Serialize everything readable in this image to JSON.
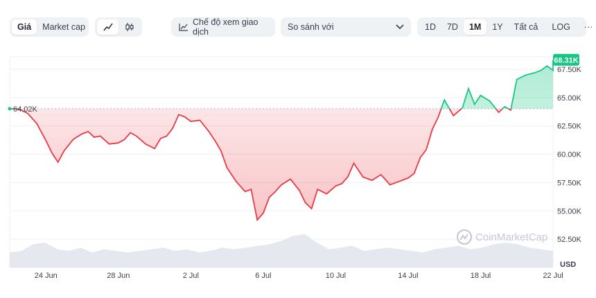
{
  "toolbar": {
    "metric_tabs": [
      {
        "label": "Giá",
        "active": true
      },
      {
        "label": "Market cap",
        "active": false
      }
    ],
    "chart_type_icons": [
      {
        "icon": "line-chart-icon",
        "active": true
      },
      {
        "icon": "candlestick-icon",
        "active": false
      }
    ],
    "view_mode_label": "Chế độ xem giao dịch",
    "compare_placeholder": "So sánh với",
    "ranges": [
      {
        "label": "1D",
        "active": false
      },
      {
        "label": "7D",
        "active": false
      },
      {
        "label": "1M",
        "active": true
      },
      {
        "label": "1Y",
        "active": false
      },
      {
        "label": "Tất cả",
        "active": false
      },
      {
        "label": "LOG",
        "active": false
      }
    ],
    "more_label": "···"
  },
  "watermark": "CoinMarketCap",
  "colors": {
    "up": "#16c784",
    "down": "#ea3943",
    "baseline": "#a6b0c3",
    "grid": "#eef0f4"
  },
  "chart_data": {
    "type": "area",
    "currency": "USD",
    "baseline_value": 64020,
    "baseline_label": "64.02K",
    "current_value": 68310,
    "current_label": "68.31K",
    "ylim": [
      50000,
      68600
    ],
    "yticks": [
      {
        "value": 52500,
        "label": "52.50K"
      },
      {
        "value": 55000,
        "label": "55.00K"
      },
      {
        "value": 57500,
        "label": "57.50K"
      },
      {
        "value": 60000,
        "label": "60.00K"
      },
      {
        "value": 62500,
        "label": "62.50K"
      },
      {
        "value": 65000,
        "label": "65.00K"
      },
      {
        "value": 67500,
        "label": "67.50K"
      }
    ],
    "x_domain": [
      "2024-06-22",
      "2024-07-22"
    ],
    "xticks": [
      {
        "date": "2024-06-24",
        "label": "24 Jun"
      },
      {
        "date": "2024-06-28",
        "label": "28 Jun"
      },
      {
        "date": "2024-07-02",
        "label": "2 Jul"
      },
      {
        "date": "2024-07-06",
        "label": "6 Jul"
      },
      {
        "date": "2024-07-10",
        "label": "10 Jul"
      },
      {
        "date": "2024-07-14",
        "label": "14 Jul"
      },
      {
        "date": "2024-07-18",
        "label": "18 Jul"
      },
      {
        "date": "2024-07-22",
        "label": "22 Jul"
      }
    ],
    "series": [
      {
        "points": [
          [
            "2024-06-22",
            64020
          ],
          [
            "2024-06-22",
            64000
          ],
          [
            "2024-06-23",
            63600
          ],
          [
            "2024-06-23",
            62700
          ],
          [
            "2024-06-24",
            61200
          ],
          [
            "2024-06-24",
            60100
          ],
          [
            "2024-06-24",
            59300
          ],
          [
            "2024-06-25",
            60300
          ],
          [
            "2024-06-25",
            61300
          ],
          [
            "2024-06-26",
            61800
          ],
          [
            "2024-06-26",
            62000
          ],
          [
            "2024-06-26",
            61500
          ],
          [
            "2024-06-27",
            61600
          ],
          [
            "2024-06-27",
            60900
          ],
          [
            "2024-06-28",
            61000
          ],
          [
            "2024-06-28",
            61300
          ],
          [
            "2024-06-28",
            61900
          ],
          [
            "2024-06-29",
            61600
          ],
          [
            "2024-06-29",
            60900
          ],
          [
            "2024-06-30",
            60500
          ],
          [
            "2024-06-30",
            61400
          ],
          [
            "2024-06-30",
            61600
          ],
          [
            "2024-07-01",
            62300
          ],
          [
            "2024-07-01",
            63500
          ],
          [
            "2024-07-01",
            63300
          ],
          [
            "2024-07-02",
            62900
          ],
          [
            "2024-07-02",
            63000
          ],
          [
            "2024-07-03",
            62000
          ],
          [
            "2024-07-03",
            61200
          ],
          [
            "2024-07-03",
            60300
          ],
          [
            "2024-07-04",
            58800
          ],
          [
            "2024-07-04",
            57600
          ],
          [
            "2024-07-05",
            56700
          ],
          [
            "2024-07-05",
            56900
          ],
          [
            "2024-07-05",
            54200
          ],
          [
            "2024-07-06",
            54800
          ],
          [
            "2024-07-06",
            56200
          ],
          [
            "2024-07-06",
            56700
          ],
          [
            "2024-07-07",
            57300
          ],
          [
            "2024-07-07",
            57800
          ],
          [
            "2024-07-08",
            56800
          ],
          [
            "2024-07-08",
            55700
          ],
          [
            "2024-07-08",
            55200
          ],
          [
            "2024-07-09",
            56900
          ],
          [
            "2024-07-09",
            56500
          ],
          [
            "2024-07-10",
            57200
          ],
          [
            "2024-07-10",
            57400
          ],
          [
            "2024-07-10",
            58000
          ],
          [
            "2024-07-11",
            59200
          ],
          [
            "2024-07-11",
            58000
          ],
          [
            "2024-07-12",
            57700
          ],
          [
            "2024-07-12",
            58200
          ],
          [
            "2024-07-13",
            57300
          ],
          [
            "2024-07-13",
            57600
          ],
          [
            "2024-07-14",
            57900
          ],
          [
            "2024-07-14",
            58300
          ],
          [
            "2024-07-14",
            59700
          ],
          [
            "2024-07-15",
            60400
          ],
          [
            "2024-07-15",
            62200
          ],
          [
            "2024-07-15",
            63300
          ],
          [
            "2024-07-16",
            64800
          ],
          [
            "2024-07-16",
            63400
          ],
          [
            "2024-07-17",
            64100
          ],
          [
            "2024-07-17",
            65800
          ],
          [
            "2024-07-17",
            64400
          ],
          [
            "2024-07-18",
            65200
          ],
          [
            "2024-07-18",
            64700
          ],
          [
            "2024-07-19",
            63700
          ],
          [
            "2024-07-19",
            64200
          ],
          [
            "2024-07-19",
            63900
          ],
          [
            "2024-07-20",
            66600
          ],
          [
            "2024-07-20",
            67000
          ],
          [
            "2024-07-21",
            67200
          ],
          [
            "2024-07-21",
            67400
          ],
          [
            "2024-07-21",
            67800
          ],
          [
            "2024-07-22",
            67400
          ],
          [
            "2024-07-22",
            68310
          ]
        ]
      }
    ],
    "volume_profile": [
      0.45,
      0.5,
      0.7,
      0.75,
      0.55,
      0.5,
      0.6,
      0.45,
      0.55,
      0.5,
      0.45,
      0.5,
      0.55,
      0.6,
      0.5,
      0.55,
      0.45,
      0.5,
      0.6,
      0.55,
      0.6,
      0.65,
      0.7,
      0.8,
      0.95,
      1.0,
      0.75,
      0.55,
      0.6,
      0.65,
      0.5,
      0.55,
      0.6,
      0.55,
      0.5,
      0.45,
      0.55,
      0.6,
      0.65,
      0.55,
      0.6,
      0.7,
      0.75,
      0.7,
      0.6,
      0.55,
      0.5
    ]
  }
}
